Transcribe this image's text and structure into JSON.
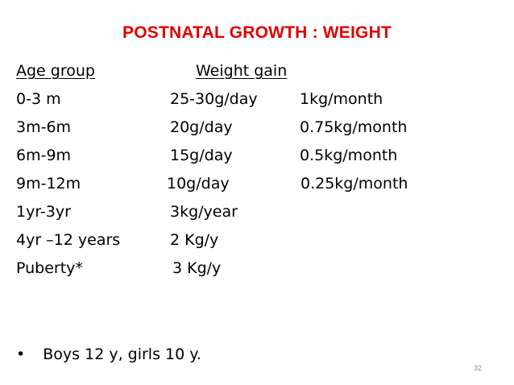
{
  "title": "POSTNATAL GROWTH : WEIGHT",
  "header": {
    "age_group": "Age group",
    "weight_gain": "Weight gain"
  },
  "rows": [
    {
      "age": "0-3 m",
      "gain": "25-30g/day",
      "monthly": "1kg/month"
    },
    {
      "age": "3m-6m",
      "gain": "20g/day",
      "monthly": "0.75kg/month"
    },
    {
      "age": "6m-9m",
      "gain": "15g/day",
      "monthly": "0.5kg/month"
    },
    {
      "age": "9m-12m",
      "gain": "10g/day",
      "monthly": "0.25kg/month"
    },
    {
      "age": "1yr-3yr",
      "gain": "3kg/year",
      "monthly": ""
    },
    {
      "age": "4yr –12 years",
      "gain": "2 Kg/y",
      "monthly": ""
    },
    {
      "age": "Puberty*",
      "gain": "3 Kg/y",
      "monthly": ""
    }
  ],
  "bullet": {
    "symbol": "•",
    "text": "Boys 12 y, girls 10 y."
  },
  "page_number": "32",
  "colors": {
    "title": "#e00000",
    "text": "#000000",
    "page_number": "#8a8a8a"
  }
}
